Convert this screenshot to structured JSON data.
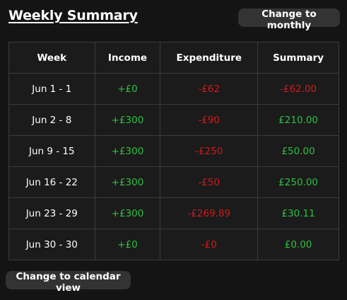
{
  "header": {
    "title": "Weekly Summary",
    "toggle_label": "Change to monthly"
  },
  "table": {
    "columns": [
      "Week",
      "Income",
      "Expenditure",
      "Summary"
    ],
    "rows": [
      {
        "week": "Jun 1 - 1",
        "income": "+£0",
        "expenditure": "-£62",
        "summary": "-£62.00",
        "summary_status": "negative"
      },
      {
        "week": "Jun 2 - 8",
        "income": "+£300",
        "expenditure": "-£90",
        "summary": "£210.00",
        "summary_status": "positive"
      },
      {
        "week": "Jun 9 - 15",
        "income": "+£300",
        "expenditure": "-£250",
        "summary": "£50.00",
        "summary_status": "positive"
      },
      {
        "week": "Jun 16 - 22",
        "income": "+£300",
        "expenditure": "-£50",
        "summary": "£250.00",
        "summary_status": "positive"
      },
      {
        "week": "Jun 23 - 29",
        "income": "+£300",
        "expenditure": "-£269.89",
        "summary": "£30.11",
        "summary_status": "positive"
      },
      {
        "week": "Jun 30 - 30",
        "income": "+£0",
        "expenditure": "-£0",
        "summary": "£0.00",
        "summary_status": "positive"
      }
    ]
  },
  "footer": {
    "calendar_button_label": "Change to calendar view"
  },
  "colors": {
    "background": "#141414",
    "positive": "#2ec043",
    "negative": "#d1191b",
    "button_bg": "#333333",
    "grid": "#3c3c3c"
  }
}
